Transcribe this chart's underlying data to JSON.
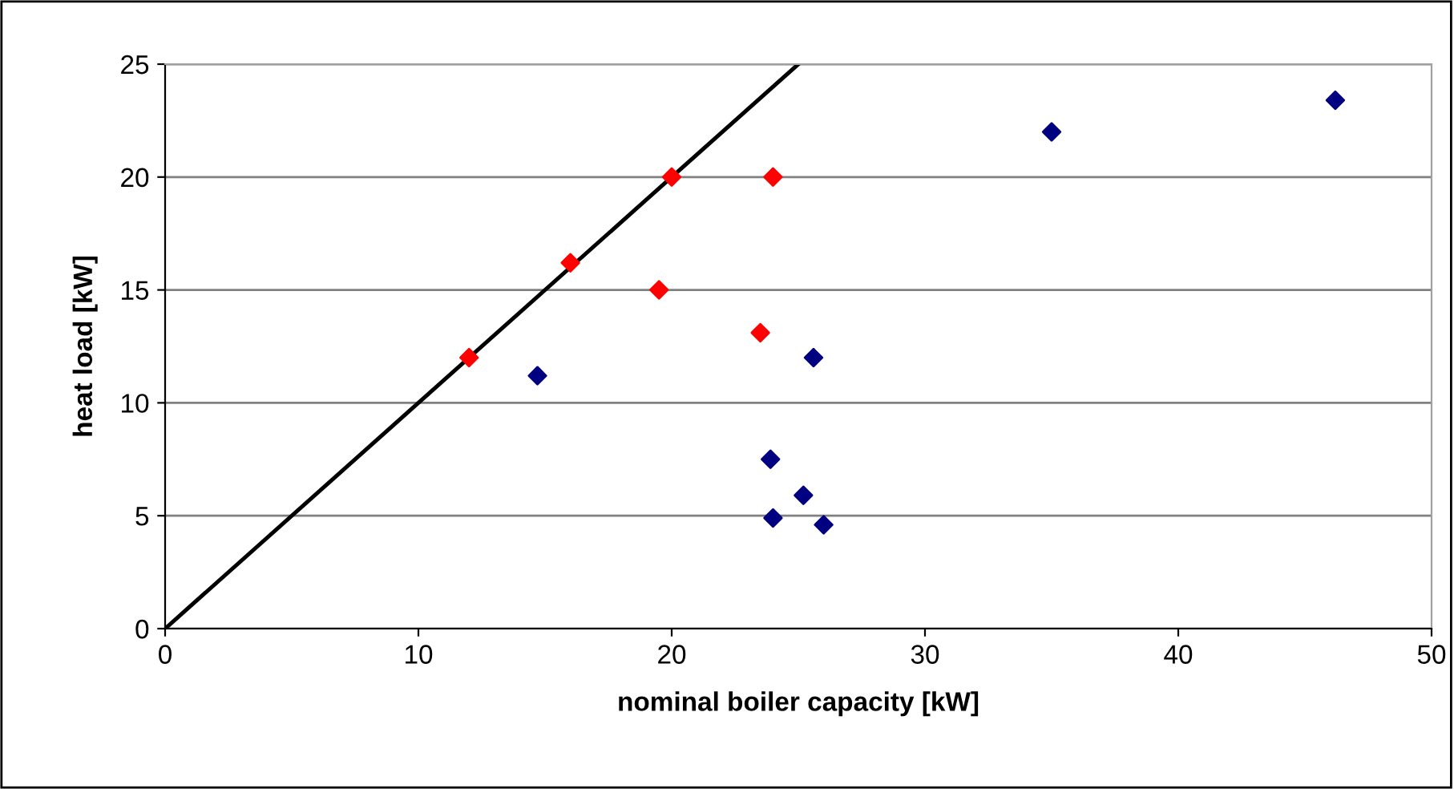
{
  "chart_data": {
    "type": "scatter",
    "xlabel": "nominal boiler capacity [kW]",
    "ylabel": "heat load [kW]",
    "xlim": [
      0,
      50
    ],
    "ylim": [
      0,
      25
    ],
    "xticks": [
      0,
      10,
      20,
      30,
      40,
      50
    ],
    "yticks": [
      0,
      5,
      10,
      15,
      20,
      25
    ],
    "grid": "y",
    "legend": false,
    "marker": "diamond",
    "series": [
      {
        "color": "#ff0000",
        "x": [
          12,
          16,
          20,
          19.5,
          24,
          23.5
        ],
        "values": [
          12,
          16.2,
          20,
          15,
          20,
          13.1
        ]
      },
      {
        "color": "#000080",
        "x": [
          14.7,
          25.6,
          23.9,
          24,
          25.2,
          26,
          35,
          46.2
        ],
        "values": [
          11.2,
          12,
          7.5,
          4.9,
          5.9,
          4.6,
          22,
          23.4
        ]
      },
      {
        "type": "line",
        "color": "#000000",
        "x": [
          0,
          25
        ],
        "values": [
          0,
          25
        ],
        "marker": "none",
        "line_style": "solid"
      }
    ]
  }
}
